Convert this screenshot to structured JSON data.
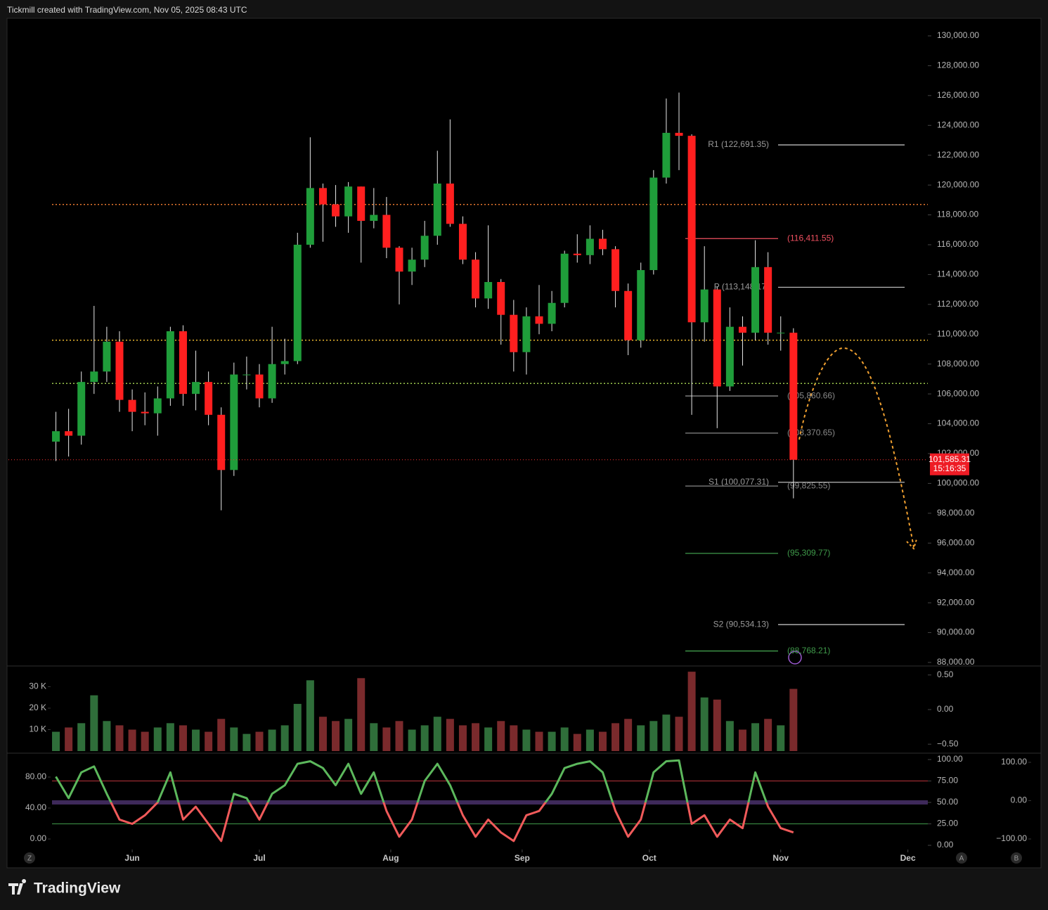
{
  "header": "Tickmill created with TradingView.com, Nov 05, 2025 08:43 UTC",
  "brand": "TradingView",
  "controls": [
    "Z",
    "A",
    "B"
  ],
  "chart_data": [
    {
      "type": "candlestick",
      "up_color": "#1f9d3a",
      "down_color": "#ff1f1f",
      "x": [
        0,
        3,
        6,
        9,
        12,
        15,
        18,
        21,
        24,
        27,
        30,
        33,
        36,
        39,
        42,
        45,
        48,
        51,
        54,
        57,
        60,
        63,
        66,
        69,
        72,
        75,
        78,
        81,
        84,
        87,
        90,
        93,
        96,
        99,
        102,
        105,
        108,
        111,
        114,
        117,
        120,
        123,
        126,
        129,
        132,
        135,
        138,
        141,
        144,
        147,
        150,
        153,
        156,
        159,
        162,
        165,
        168,
        171,
        174
      ],
      "open": [
        102800,
        103500,
        103200,
        106800,
        107500,
        109500,
        105600,
        104800,
        104700,
        105700,
        110200,
        106000,
        106800,
        104600,
        100900,
        107300,
        107300,
        105700,
        108000,
        108200,
        116000,
        119800,
        118700,
        117900,
        119900,
        117600,
        118000,
        115800,
        114200,
        115000,
        116600,
        120100,
        117400,
        115000,
        112400,
        113500,
        111300,
        108800,
        111200,
        110700,
        112100,
        115400,
        115300,
        116400,
        115700,
        112900,
        109600,
        114300,
        120500,
        123500,
        123300,
        110800,
        113000,
        106500,
        110500,
        110100,
        114500,
        110100,
        110100
      ],
      "high": [
        104800,
        105000,
        107500,
        111900,
        110500,
        110200,
        106300,
        106100,
        106500,
        110500,
        110600,
        108900,
        107500,
        105100,
        108100,
        108500,
        108000,
        110500,
        109700,
        116800,
        123200,
        120100,
        120000,
        120200,
        119900,
        119800,
        119200,
        115900,
        115800,
        117600,
        122300,
        124400,
        117900,
        115500,
        117300,
        113700,
        112300,
        111800,
        113300,
        112900,
        115600,
        116700,
        117300,
        117000,
        115900,
        113400,
        114800,
        121000,
        125800,
        126200,
        123400,
        115900,
        113200,
        111800,
        111200,
        116300,
        115500,
        111200,
        110400
      ],
      "low": [
        101500,
        101800,
        102600,
        106000,
        106800,
        104800,
        103500,
        103900,
        103200,
        105200,
        105200,
        104900,
        103900,
        98200,
        100500,
        106300,
        105100,
        105400,
        107300,
        108000,
        115800,
        116200,
        117200,
        116800,
        114800,
        117100,
        115100,
        112000,
        113300,
        114500,
        116000,
        117200,
        114700,
        111800,
        111700,
        109300,
        107500,
        107300,
        110000,
        110200,
        111800,
        114800,
        114700,
        115300,
        111800,
        108600,
        109100,
        114000,
        120100,
        121000,
        104600,
        109500,
        103700,
        106200,
        107900,
        109600,
        109300,
        108900,
        99000
      ],
      "close": [
        103500,
        103200,
        106800,
        107500,
        109500,
        105600,
        104800,
        104700,
        105700,
        110200,
        106000,
        106800,
        104600,
        100900,
        107300,
        107300,
        105700,
        108000,
        108200,
        116000,
        119800,
        118700,
        117900,
        119900,
        117600,
        118000,
        115800,
        114200,
        115000,
        116600,
        120100,
        117400,
        115000,
        112400,
        113500,
        111300,
        108800,
        111200,
        110700,
        112100,
        115400,
        115300,
        116400,
        115700,
        112900,
        109600,
        114300,
        120500,
        123500,
        123300,
        110800,
        113000,
        106500,
        110500,
        110100,
        114500,
        110100,
        110100,
        101585.31
      ],
      "xlim": [
        -11.2,
        205.7
      ],
      "xticks": [
        {
          "value": 18,
          "label": "Jun"
        },
        {
          "value": 48,
          "label": "Jul"
        },
        {
          "value": 79,
          "label": "Aug"
        },
        {
          "value": 110,
          "label": "Sep"
        },
        {
          "value": 140,
          "label": "Oct"
        },
        {
          "value": 171,
          "label": "Nov"
        },
        {
          "value": 201,
          "label": "Dec"
        }
      ],
      "ylim": [
        87810,
        131084
      ],
      "yticks": [
        {
          "value": 88000,
          "label": "88,000.00"
        },
        {
          "value": 90000,
          "label": "90,000.00"
        },
        {
          "value": 92000,
          "label": "92,000.00"
        },
        {
          "value": 94000,
          "label": "94,000.00"
        },
        {
          "value": 96000,
          "label": "96,000.00"
        },
        {
          "value": 98000,
          "label": "98,000.00"
        },
        {
          "value": 100000,
          "label": "100,000.00"
        },
        {
          "value": 102000,
          "label": "102,000.00"
        },
        {
          "value": 104000,
          "label": "104,000.00"
        },
        {
          "value": 106000,
          "label": "106,000.00"
        },
        {
          "value": 108000,
          "label": "108,000.00"
        },
        {
          "value": 110000,
          "label": "110,000.00"
        },
        {
          "value": 112000,
          "label": "112,000.00"
        },
        {
          "value": 114000,
          "label": "114,000.00"
        },
        {
          "value": 116000,
          "label": "116,000.00"
        },
        {
          "value": 118000,
          "label": "118,000.00"
        },
        {
          "value": 120000,
          "label": "120,000.00"
        },
        {
          "value": 122000,
          "label": "122,000.00"
        },
        {
          "value": 124000,
          "label": "124,000.00"
        },
        {
          "value": 126000,
          "label": "126,000.00"
        },
        {
          "value": 128000,
          "label": "128,000.00"
        },
        {
          "value": 130000,
          "label": "130,000.00"
        }
      ],
      "hlines": [
        {
          "value": 118700,
          "color": "#e8772e"
        },
        {
          "value": 109600,
          "color": "#e8b52e"
        },
        {
          "value": 106700,
          "color": "#9cc84e"
        }
      ],
      "levels": [
        {
          "label": "R1 (122,691.35)",
          "value": 122691.35,
          "color": "#bbbbbb"
        },
        {
          "label": "(116,411.55)",
          "value": 116411.55,
          "color": "#f05060"
        },
        {
          "label": "P (113,148.17)",
          "value": 113148.17,
          "color": "#bbbbbb"
        },
        {
          "label": "(105,860.66)",
          "value": 105860.66,
          "color": "#888888"
        },
        {
          "label": "(103,370.65)",
          "value": 103370.65,
          "color": "#888888"
        },
        {
          "label": "S1 (100,077.31)",
          "value": 100077.31,
          "color": "#bbbbbb"
        },
        {
          "label": "(99,825.55)",
          "value": 99825.55,
          "color": "#888888"
        },
        {
          "label": "(95,309.77)",
          "value": 95309.77,
          "color": "#3f9a4a"
        },
        {
          "label": "S2 (90,534.13)",
          "value": 90534.13,
          "color": "#bbbbbb"
        },
        {
          "label": "(88,768.21)",
          "value": 88768.21,
          "color": "#3f9a4a"
        }
      ],
      "last_price": {
        "value": 101585.31,
        "label": "101,585.31"
      },
      "countdown": "15:16:35"
    },
    {
      "type": "bar",
      "up_color": "#2f6e3a",
      "down_color": "#7a2a2c",
      "values": [
        9000,
        11000,
        13000,
        26000,
        14000,
        12000,
        10000,
        9000,
        11000,
        13000,
        12000,
        10000,
        9000,
        15000,
        11000,
        8000,
        9000,
        10000,
        12000,
        22000,
        33000,
        16000,
        14000,
        15000,
        34000,
        13000,
        11000,
        14000,
        10000,
        12000,
        16000,
        15000,
        12000,
        13000,
        11000,
        14000,
        12000,
        10000,
        9000,
        9000,
        11000,
        8000,
        10000,
        9000,
        13000,
        15000,
        12000,
        14000,
        17000,
        16000,
        37000,
        25000,
        24000,
        14000,
        10000,
        13000,
        15000,
        12000,
        29000
      ],
      "ylim": [
        0,
        40000
      ],
      "yticks": [
        {
          "value": 10000,
          "label": "10 K"
        },
        {
          "value": 20000,
          "label": "20 K"
        },
        {
          "value": 30000,
          "label": "30 K"
        }
      ],
      "y2lim": [
        -0.62,
        0.62
      ],
      "y2ticks": [
        {
          "value": 0.5,
          "label": "0.50"
        },
        {
          "value": 0,
          "label": "0.00"
        },
        {
          "value": -0.5,
          "label": "−0.50"
        }
      ]
    },
    {
      "type": "line",
      "series": [
        {
          "color": "#5cb85c",
          "low_color": "#f05a5a",
          "values": [
            80,
            55,
            85,
            92,
            60,
            30,
            25,
            35,
            50,
            85,
            30,
            45,
            25,
            5,
            60,
            55,
            30,
            60,
            70,
            95,
            98,
            90,
            70,
            95,
            60,
            85,
            40,
            10,
            30,
            75,
            95,
            70,
            35,
            10,
            30,
            15,
            5,
            35,
            40,
            60,
            90,
            95,
            98,
            85,
            40,
            10,
            30,
            85,
            98,
            99,
            25,
            35,
            10,
            30,
            20,
            85,
            45,
            20,
            15
          ]
        }
      ],
      "ylim": [
        -4.9,
        106.6
      ],
      "yticks": [
        {
          "value": 0,
          "label": "0.00"
        },
        {
          "value": 25,
          "label": "25.00"
        },
        {
          "value": 50,
          "label": "50.00"
        },
        {
          "value": 75,
          "label": "75.00"
        },
        {
          "value": 100,
          "label": "100.00"
        }
      ],
      "y2lim": [
        -13.6,
        110
      ],
      "y2ticks": [
        {
          "value": 0,
          "label": "0.00"
        },
        {
          "value": 40,
          "label": "40.00"
        },
        {
          "value": 80,
          "label": "80.00"
        }
      ],
      "y3lim": [
        -127.5,
        122
      ],
      "y3ticks": [
        {
          "value": -100,
          "label": "−100.00"
        },
        {
          "value": 0,
          "label": "0.00"
        },
        {
          "value": 100,
          "label": "100.00"
        }
      ],
      "guides": [
        {
          "value": 75,
          "color": "#b8323a"
        },
        {
          "value": 50,
          "color": "#8a5cc8"
        },
        {
          "value": 25,
          "color": "#3f9a4a"
        }
      ]
    }
  ]
}
